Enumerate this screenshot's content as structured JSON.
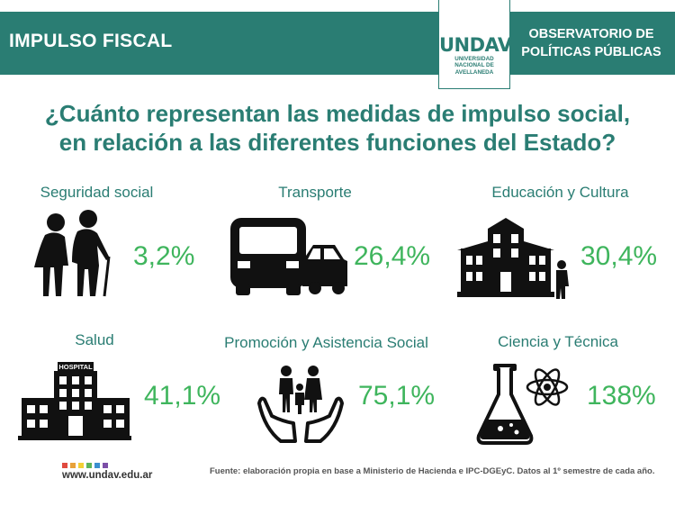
{
  "header": {
    "left_title": "IMPULSO FISCAL",
    "right_title_line1": "OBSERVATORIO DE",
    "right_title_line2": "POLÍTICAS PÚBLICAS",
    "logo_text": "UNDAV",
    "logo_sub1": "UNIVERSIDAD",
    "logo_sub2": "NACIONAL DE",
    "logo_sub3": "AVELLANEDA",
    "accent_color": "#2a7d73"
  },
  "question": {
    "line1": "¿Cuánto representan las medidas de impulso social,",
    "line2": "en relación a las diferentes funciones del Estado?"
  },
  "items": [
    {
      "label": "Seguridad social",
      "value": "3,2%",
      "icon": "elderly-couple-icon"
    },
    {
      "label": "Transporte",
      "value": "26,4%",
      "icon": "bus-car-icon"
    },
    {
      "label": "Educación y Cultura",
      "value": "30,4%",
      "icon": "school-student-icon"
    },
    {
      "label": "Salud",
      "value": "41,1%",
      "icon": "hospital-icon"
    },
    {
      "label": "Promoción y Asistencia Social",
      "value": "75,1%",
      "icon": "family-hands-icon"
    },
    {
      "label": "Ciencia y Técnica",
      "value": "138%",
      "icon": "flask-atom-icon"
    }
  ],
  "hospital_sign": "HOSPITAL",
  "value_color": "#3fb55d",
  "footer": {
    "site": "www.undav.edu.ar",
    "source": "Fuente: elaboración propia en base a Ministerio de Hacienda e IPC-DGEyC. Datos al 1º semestre de cada año.",
    "dot_colors": [
      "#e04a3f",
      "#e8a23a",
      "#f2d035",
      "#5db35a",
      "#3b8fcf",
      "#7c4fa8"
    ]
  }
}
